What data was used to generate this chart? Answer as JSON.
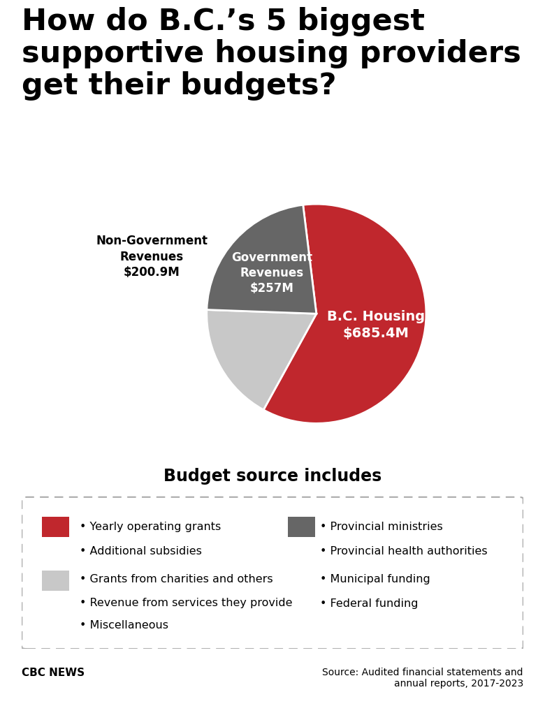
{
  "title_line1": "How do B.C.’s 5 biggest",
  "title_line2": "supportive housing providers",
  "title_line3": "get their budgets?",
  "pie_values": [
    685.4,
    200.9,
    257.0
  ],
  "pie_colors": [
    "#c0272d",
    "#c8c8c8",
    "#666666"
  ],
  "pie_startangle": 97,
  "bc_label": "B.C. Housing",
  "bc_amount": "$685.4M",
  "nongov_label": "Non-Government\nRevenues",
  "nongov_amount": "$200.9M",
  "gov_label": "Government\nRevenues",
  "gov_amount": "$257M",
  "legend_title": "Budget source includes",
  "legend_items_left_color": "#c0272d",
  "legend_items_left": [
    "• Yearly operating grants",
    "• Additional subsidies"
  ],
  "legend_items_mid_color": "#c8c8c8",
  "legend_items_mid": [
    "• Grants from charities and others",
    "• Revenue from services they provide",
    "• Miscellaneous"
  ],
  "legend_items_right_color": "#666666",
  "legend_items_right": [
    "• Provincial ministries",
    "• Provincial health authorities",
    "• Municipal funding",
    "• Federal funding"
  ],
  "footer_left": "CBC NEWS",
  "footer_right": "Source: Audited financial statements and\nannual reports, 2017-2023",
  "background_color": "#ffffff"
}
